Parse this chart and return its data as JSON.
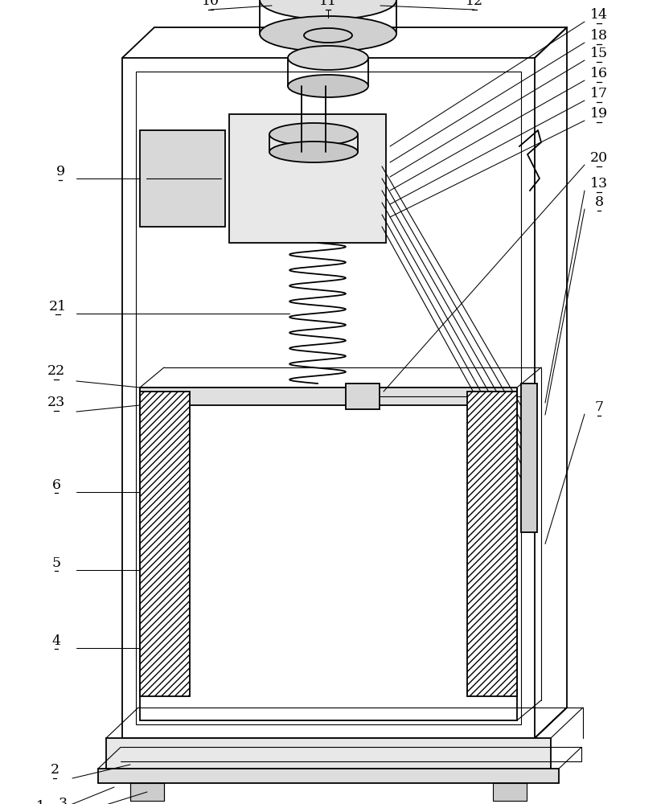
{
  "bg_color": "#ffffff",
  "line_color": "#000000",
  "fig_width": 8.32,
  "fig_height": 10.0,
  "lw_main": 1.3,
  "lw_thin": 0.8,
  "lw_label": 0.7
}
